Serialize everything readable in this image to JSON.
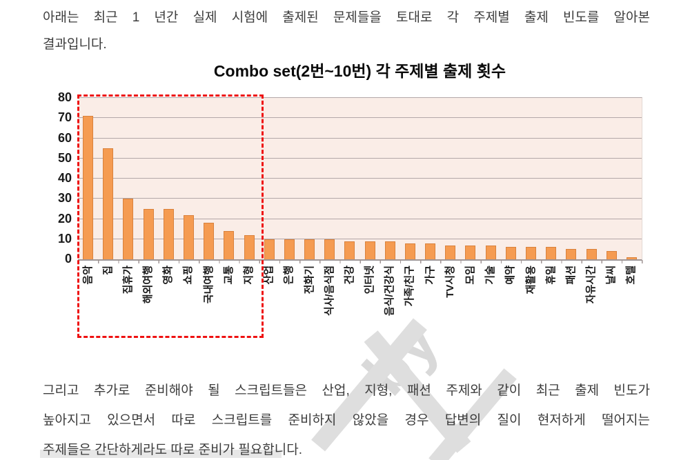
{
  "page": {
    "intro_lines": [
      "아래는 최근 1 년간 실제 시험에 출제된 문제들을 토대로 각 주제별 출제 빈도를 알아본",
      "결과입니다."
    ],
    "outro_lines": [
      "그리고 추가로 준비해야 될 스크립트들은 산업, 지형, 패션 주제와 같이 최근 출제 빈도가",
      "높아지고 있으면서 따로 스크립트를 준비하지 않았을 경우 답변의 질이 현저하게 떨어지는",
      "주제들은 간단하게라도 따로 준비가 필요합니다."
    ],
    "watermark_fragment": "by"
  },
  "chart_data": {
    "type": "bar",
    "title": "Combo set(2번~10번) 각 주제별 출제 횟수",
    "categories": [
      "음악",
      "집",
      "집휴가",
      "해외여행",
      "영화",
      "쇼핑",
      "국내여행",
      "교통",
      "지형",
      "산업",
      "은행",
      "전화기",
      "식사/음식점",
      "건강",
      "인터넷",
      "음식/건강식",
      "가족/친구",
      "가구",
      "TV시청",
      "모임",
      "기술",
      "예약",
      "재활용",
      "휴일",
      "패션",
      "자유시간",
      "날씨",
      "호텔"
    ],
    "values": [
      71,
      55,
      30,
      25,
      25,
      22,
      18,
      14,
      12,
      10,
      10,
      10,
      10,
      9,
      9,
      9,
      8,
      8,
      7,
      7,
      7,
      6,
      6,
      6,
      5,
      5,
      4,
      1
    ],
    "xlabel": "",
    "ylabel": "",
    "ylim": [
      0,
      80
    ],
    "ytick_interval": 10,
    "grid": true,
    "legend_position": "none",
    "bar_color": "#F59B51",
    "bar_border_color": "#D9813C",
    "plot_bg_color": "#FAEDE7",
    "gridline_color": "#B3A7A8",
    "axis_color": "#9E9696",
    "highlight_box": {
      "style": "dashed",
      "color": "#EE1111",
      "from_category": "음악",
      "to_category": "지형"
    }
  }
}
